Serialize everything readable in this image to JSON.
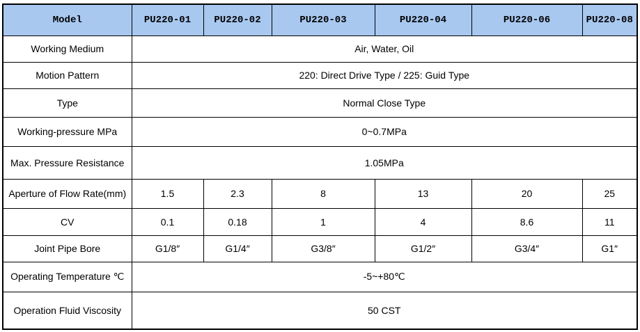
{
  "table": {
    "header": [
      "Model",
      "PU220-01",
      "PU220-02",
      "PU220-03",
      "PU220-04",
      "PU220-06",
      "PU220-08"
    ],
    "rows": [
      [
        "Working Medium",
        "Air, Water, Oil"
      ],
      [
        "Motion Pattern",
        "220: Direct Drive Type / 225: Guid Type"
      ],
      [
        "Type",
        "Normal Close Type"
      ],
      [
        "Working-pressure MPa",
        "0~0.7MPa"
      ],
      [
        "Max. Pressure Resistance",
        "1.05MPa"
      ],
      [
        "Aperture of Flow Rate(mm)",
        "1.5",
        "2.3",
        "8",
        "13",
        "20",
        "25"
      ],
      [
        "CV",
        "0.1",
        "0.18",
        "1",
        "4",
        "8.6",
        "11"
      ],
      [
        "Joint Pipe Bore",
        "G1/8″",
        "G1/4″",
        "G3/8″",
        "G1/2″",
        "G3/4″",
        "G1″"
      ],
      [
        "Operating Temperature ℃",
        "-5~+80℃"
      ],
      [
        "Operation Fluid Viscosity",
        "50 CST"
      ]
    ]
  }
}
